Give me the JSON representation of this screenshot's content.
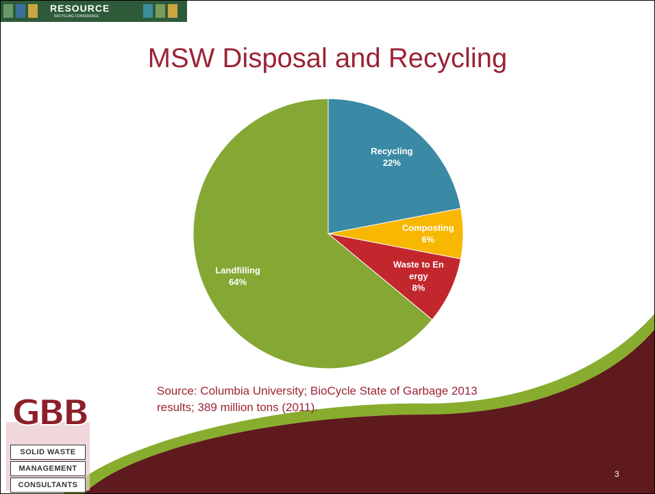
{
  "header": {
    "logo_title": "RESOURCE",
    "logo_subtitle": "RECYCLING CONFERENCE"
  },
  "chart_data": {
    "type": "pie",
    "title": "MSW Disposal and Recycling",
    "categories": [
      "Recycling",
      "Composting",
      "Waste to Energy",
      "Landfilling"
    ],
    "values": [
      22,
      6,
      8,
      64
    ],
    "value_labels": [
      "22%",
      "6%",
      "8%",
      "64%"
    ],
    "colors": [
      "#3a89a5",
      "#f8b700",
      "#c1272d",
      "#85a835"
    ]
  },
  "source": "Source: Columbia University; BioCycle State of Garbage 2013 results; 389 million tons (2011).",
  "footer_logo": {
    "mark": "GBB",
    "lines": [
      "SOLID WASTE",
      "MANAGEMENT",
      "CONSULTANTS"
    ]
  },
  "page_number": "3"
}
